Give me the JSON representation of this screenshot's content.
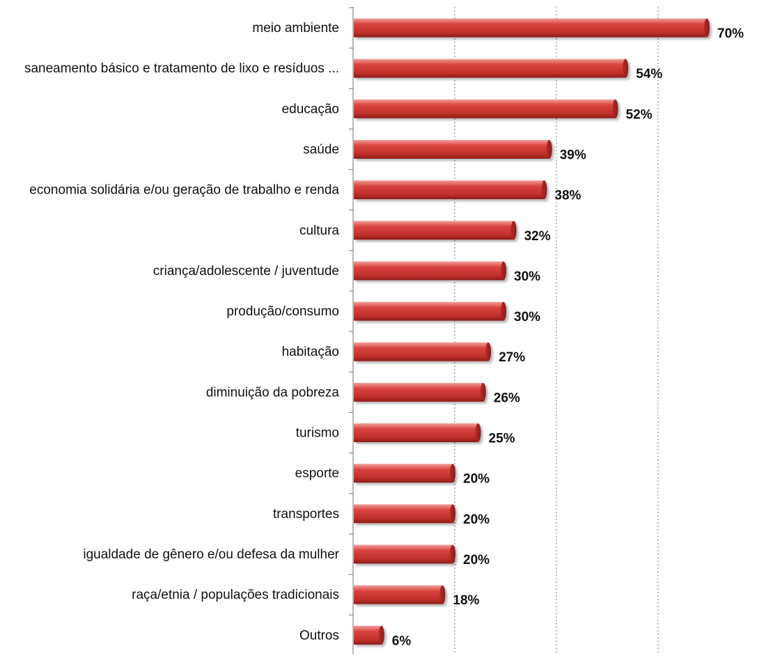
{
  "chart_data": {
    "type": "bar",
    "orientation": "horizontal",
    "categories": [
      "meio ambiente",
      "saneamento básico e tratamento  de lixo e resíduos ...",
      "educação",
      "saúde",
      "economia solidária e/ou geração de trabalho e renda",
      "cultura",
      "criança/adolescente / juventude",
      "produção/consumo",
      "habitação",
      "diminuição da pobreza",
      "turismo",
      "esporte",
      "transportes",
      "igualdade de gênero e/ou defesa da mulher",
      "raça/etnia / populações tradicionais",
      "Outros"
    ],
    "values": [
      70,
      54,
      52,
      39,
      38,
      32,
      30,
      30,
      27,
      26,
      25,
      20,
      20,
      20,
      18,
      6
    ],
    "data_labels": [
      "70%",
      "54%",
      "52%",
      "39%",
      "38%",
      "32%",
      "30%",
      "30%",
      "27%",
      "26%",
      "25%",
      "20%",
      "20%",
      "20%",
      "18%",
      "6%"
    ],
    "xlim": [
      0,
      70
    ],
    "x_gridlines": [
      20,
      40,
      60
    ],
    "grid": "vertical dotted",
    "legend": "none",
    "bar_color": "#d9534f",
    "bar_color_dark": "#8b1a1a",
    "bar_color_light": "#f4a9a6"
  }
}
